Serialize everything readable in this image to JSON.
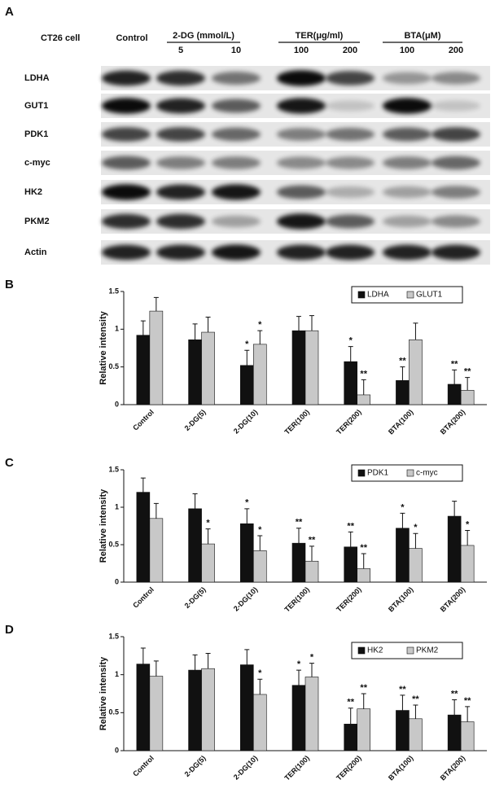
{
  "blot": {
    "panel_label": "A",
    "cell_line": "CT26 cell",
    "control_label": "Control",
    "groups": [
      {
        "label": "2-DG (mmol/L)",
        "doses": [
          "5",
          "10"
        ]
      },
      {
        "label": "TER(μg/ml)",
        "doses": [
          "100",
          "200"
        ]
      },
      {
        "label": "BTA(μM)",
        "doses": [
          "100",
          "200"
        ]
      }
    ],
    "rows": [
      "LDHA",
      "GUT1",
      "PDK1",
      "c-myc",
      "HK2",
      "PKM2",
      "Actin"
    ]
  },
  "chart_data": [
    {
      "type": "bar",
      "panel_label": "B",
      "y_label": "Relative intensity",
      "categories": [
        "Control",
        "2-DG(5)",
        "2-DG(10)",
        "TER(100)",
        "TER(200)",
        "BTA(100)",
        "BTA(200)"
      ],
      "series": [
        {
          "name": "LDHA",
          "color": "#111111",
          "values": [
            0.92,
            0.86,
            0.52,
            0.98,
            0.57,
            0.32,
            0.27
          ],
          "errors": [
            0.19,
            0.21,
            0.2,
            0.19,
            0.2,
            0.18,
            0.19
          ],
          "annotations": [
            null,
            null,
            "*",
            null,
            "*",
            "**",
            "**"
          ]
        },
        {
          "name": "GLUT1",
          "color": "#c8c8c8",
          "values": [
            1.24,
            0.96,
            0.8,
            0.98,
            0.13,
            0.86,
            0.19
          ],
          "errors": [
            0.18,
            0.2,
            0.18,
            0.2,
            0.2,
            0.22,
            0.17
          ],
          "annotations": [
            null,
            null,
            "*",
            null,
            "**",
            null,
            "**"
          ]
        }
      ],
      "ylim": [
        0,
        1.5
      ],
      "yticks": [
        0,
        0.5,
        1,
        1.5
      ]
    },
    {
      "type": "bar",
      "panel_label": "C",
      "y_label": "Relative intensity",
      "categories": [
        "Control",
        "2-DG(5)",
        "2-DG(10)",
        "TER(100)",
        "TER(200)",
        "BTA(100)",
        "BTA(200)"
      ],
      "series": [
        {
          "name": "PDK1",
          "color": "#111111",
          "values": [
            1.2,
            0.98,
            0.78,
            0.52,
            0.47,
            0.72,
            0.88
          ],
          "errors": [
            0.19,
            0.2,
            0.2,
            0.2,
            0.2,
            0.2,
            0.2
          ],
          "annotations": [
            null,
            null,
            "*",
            "**",
            "**",
            "*",
            null
          ]
        },
        {
          "name": "c-myc",
          "color": "#c8c8c8",
          "values": [
            0.85,
            0.51,
            0.42,
            0.28,
            0.18,
            0.45,
            0.49
          ],
          "errors": [
            0.2,
            0.2,
            0.2,
            0.2,
            0.2,
            0.2,
            0.2
          ],
          "annotations": [
            null,
            "*",
            "*",
            "**",
            "**",
            "*",
            "*"
          ]
        }
      ],
      "ylim": [
        0,
        1.5
      ],
      "yticks": [
        0,
        0.5,
        1,
        1.5
      ]
    },
    {
      "type": "bar",
      "panel_label": "D",
      "y_label": "Relative intensity",
      "categories": [
        "Control",
        "2-DG(5)",
        "2-DG(10)",
        "TER(100)",
        "TER(200)",
        "BTA(100)",
        "BTA(200)"
      ],
      "series": [
        {
          "name": "HK2",
          "color": "#111111",
          "values": [
            1.14,
            1.06,
            1.13,
            0.86,
            0.35,
            0.53,
            0.47
          ],
          "errors": [
            0.21,
            0.2,
            0.2,
            0.2,
            0.21,
            0.2,
            0.2
          ],
          "annotations": [
            null,
            null,
            null,
            "*",
            "**",
            "**",
            "**"
          ]
        },
        {
          "name": "PKM2",
          "color": "#c8c8c8",
          "values": [
            0.98,
            1.08,
            0.74,
            0.97,
            0.55,
            0.42,
            0.38
          ],
          "errors": [
            0.2,
            0.2,
            0.2,
            0.18,
            0.2,
            0.18,
            0.2
          ],
          "annotations": [
            null,
            null,
            "*",
            "*",
            "**",
            "**",
            "**"
          ]
        }
      ],
      "ylim": [
        0,
        1.5
      ],
      "yticks": [
        0,
        0.5,
        1,
        1.5
      ]
    }
  ]
}
